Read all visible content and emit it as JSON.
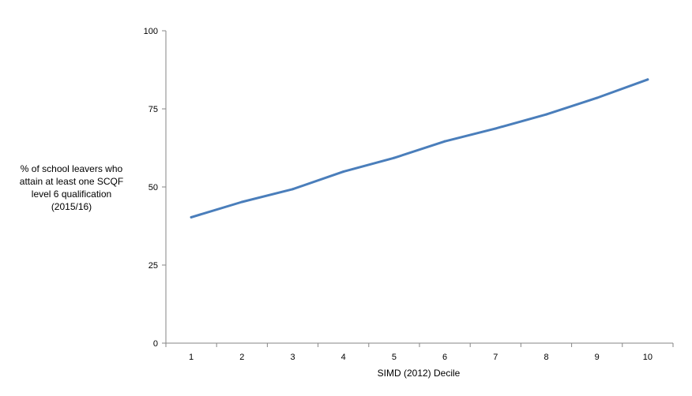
{
  "chart_data": {
    "type": "line",
    "title": "",
    "xlabel": "SIMD (2012) Decile",
    "ylabel_lines": [
      "% of school leavers who",
      "attain at least one SCQF",
      "level 6 qualification",
      "(2015/16)"
    ],
    "categories": [
      "1",
      "2",
      "3",
      "4",
      "5",
      "6",
      "7",
      "8",
      "9",
      "10"
    ],
    "series": [
      {
        "values": [
          40.3,
          45.2,
          49.3,
          54.9,
          59.3,
          64.6,
          68.7,
          73.2,
          78.5,
          84.4
        ],
        "color": "#4a7ebb"
      }
    ],
    "yticks": [
      0,
      25,
      50,
      75,
      100
    ],
    "ylim": [
      0,
      100
    ],
    "grid": false,
    "legend": "none"
  }
}
